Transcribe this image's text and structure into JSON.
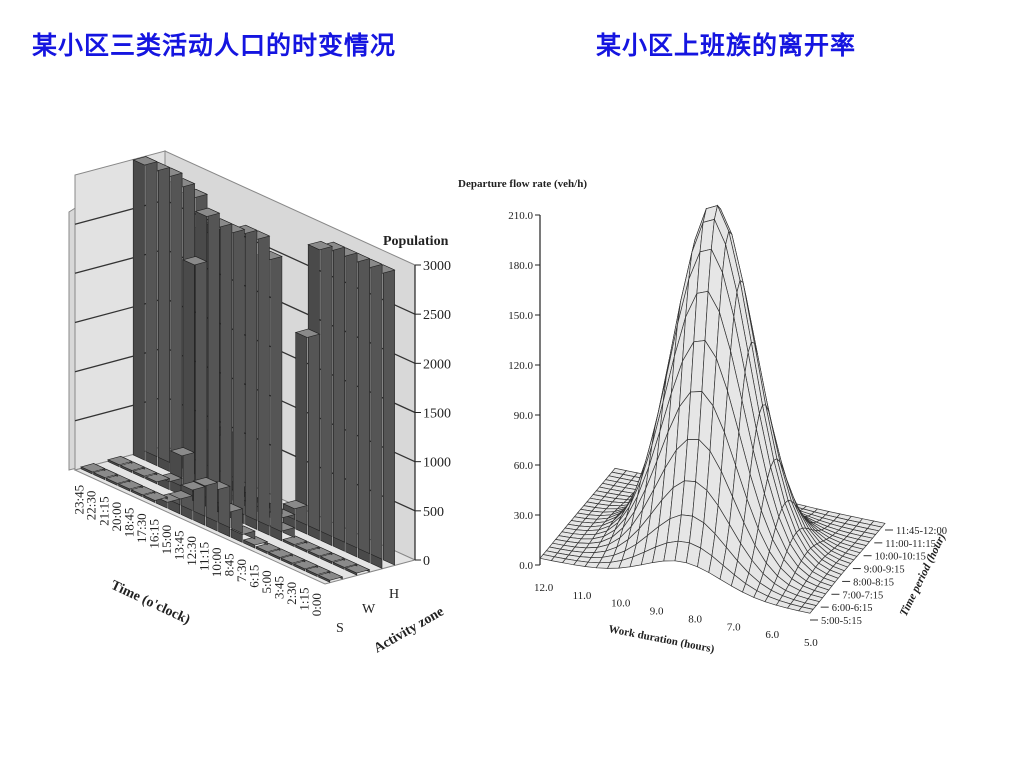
{
  "titles": {
    "left": "某小区三类活动人口的时变情况",
    "right": "某小区上班族的离开率"
  },
  "chart_data": [
    {
      "type": "area",
      "title": "",
      "zlabel": "Population",
      "xlabel": "Time (o'clock)",
      "ylabel": "Activity zone",
      "z_ticks": [
        "0",
        "500",
        "1000",
        "1500",
        "2000",
        "2500",
        "3000"
      ],
      "zlim": [
        0,
        3000
      ],
      "time_ticks": [
        "0:00",
        "1:15",
        "2:30",
        "3:45",
        "5:00",
        "6:15",
        "7:30",
        "8:45",
        "10:00",
        "11:15",
        "12:30",
        "13:45",
        "15:00",
        "16:15",
        "17:30",
        "18:45",
        "20:00",
        "21:15",
        "22:30",
        "23:45"
      ],
      "zones": [
        "S",
        "W",
        "H"
      ],
      "series": [
        {
          "name": "S",
          "values": [
            20,
            20,
            20,
            20,
            20,
            20,
            30,
            80,
            250,
            420,
            400,
            300,
            150,
            60,
            20,
            20,
            20,
            20,
            20,
            20
          ]
        },
        {
          "name": "W",
          "values": [
            20,
            20,
            20,
            20,
            20,
            20,
            100,
            2800,
            2950,
            2950,
            2900,
            2900,
            2950,
            2400,
            400,
            80,
            20,
            20,
            20,
            20
          ]
        },
        {
          "name": "H",
          "values": [
            3000,
            3000,
            3000,
            3000,
            3000,
            2950,
            2000,
            200,
            50,
            50,
            50,
            50,
            100,
            600,
            2600,
            2900,
            2950,
            3000,
            3000,
            3000
          ]
        }
      ],
      "colors": {
        "fill": "#555555",
        "edge": "#222222",
        "wall": "#d8d8d8"
      }
    },
    {
      "type": "surface",
      "title": "",
      "zlabel": "Departure flow rate (veh/h)",
      "xlabel": "Work duration (hours)",
      "ylabel": "Time period (hour)",
      "z_ticks": [
        "0.0",
        "30.0",
        "60.0",
        "90.0",
        "120.0",
        "150.0",
        "180.0",
        "210.0"
      ],
      "zlim": [
        0,
        210
      ],
      "x_ticks": [
        "12.0",
        "11.0",
        "10.0",
        "9.0",
        "8.0",
        "7.0",
        "6.0",
        "5.0"
      ],
      "xlim": [
        5,
        12
      ],
      "y_ticks": [
        "5:00-5:15",
        "6:00-6:15",
        "7:00-7:15",
        "8:00-8:15",
        "9:00-9:15",
        "10:00-10:15",
        "11:00-11:15",
        "11:45-12:00"
      ],
      "peak": {
        "work_duration": 8.3,
        "time_period": "8:00-8:15",
        "flow": 208
      },
      "colors": {
        "fill": "#e6e6e6",
        "edge": "#333333"
      }
    }
  ]
}
